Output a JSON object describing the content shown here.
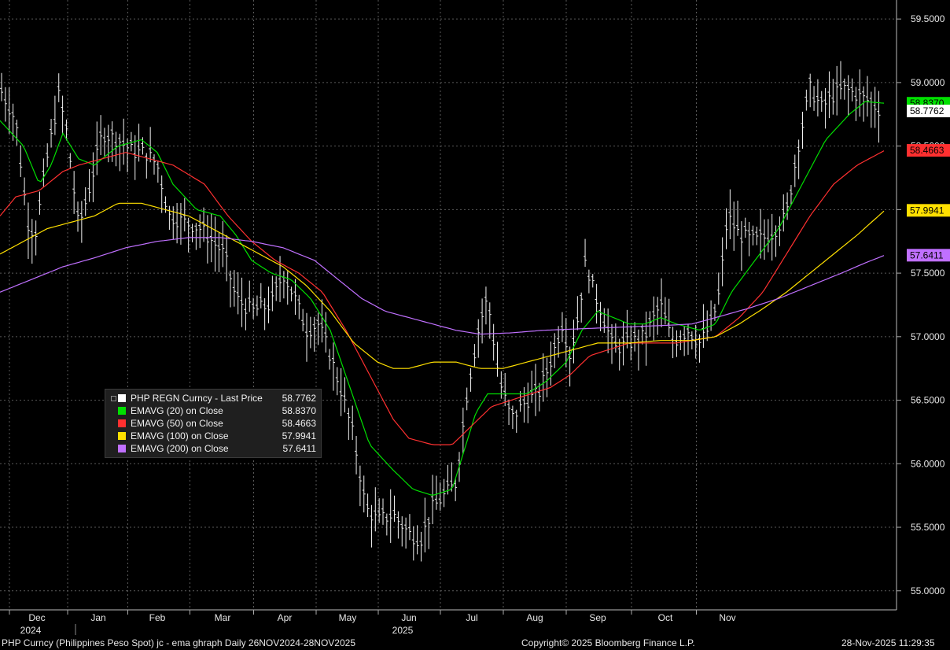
{
  "chart_data": {
    "type": "line",
    "ylim": [
      54.85,
      59.6
    ],
    "y_ticks": [
      "55.0000",
      "55.5000",
      "56.0000",
      "56.5000",
      "57.0000",
      "57.5000",
      "58.0000",
      "58.5000",
      "59.0000",
      "59.5000"
    ],
    "x_months": [
      {
        "label": "Dec",
        "t": 0.047,
        "year": "2024"
      },
      {
        "label": "Jan",
        "t": 0.125
      },
      {
        "label": "Feb",
        "t": 0.2
      },
      {
        "label": "Mar",
        "t": 0.283
      },
      {
        "label": "Apr",
        "t": 0.362
      },
      {
        "label": "May",
        "t": 0.442
      },
      {
        "label": "Jun",
        "t": 0.52,
        "year": "2025"
      },
      {
        "label": "Jul",
        "t": 0.6
      },
      {
        "label": "Aug",
        "t": 0.68
      },
      {
        "label": "Sep",
        "t": 0.76
      },
      {
        "label": "Oct",
        "t": 0.846
      },
      {
        "label": "Nov",
        "t": 0.925
      }
    ],
    "price_anchors": [
      [
        0.0,
        58.95
      ],
      [
        0.02,
        58.7
      ],
      [
        0.035,
        57.9
      ],
      [
        0.045,
        57.8
      ],
      [
        0.06,
        58.4
      ],
      [
        0.075,
        58.9
      ],
      [
        0.085,
        58.6
      ],
      [
        0.1,
        57.85
      ],
      [
        0.115,
        58.2
      ],
      [
        0.13,
        58.6
      ],
      [
        0.15,
        58.55
      ],
      [
        0.17,
        58.45
      ],
      [
        0.185,
        58.45
      ],
      [
        0.2,
        58.35
      ],
      [
        0.215,
        57.95
      ],
      [
        0.235,
        57.9
      ],
      [
        0.255,
        57.85
      ],
      [
        0.27,
        57.75
      ],
      [
        0.285,
        57.65
      ],
      [
        0.3,
        57.3
      ],
      [
        0.32,
        57.2
      ],
      [
        0.345,
        57.25
      ],
      [
        0.36,
        57.5
      ],
      [
        0.375,
        57.3
      ],
      [
        0.39,
        57.05
      ],
      [
        0.405,
        57.1
      ],
      [
        0.42,
        56.85
      ],
      [
        0.435,
        56.55
      ],
      [
        0.45,
        56.2
      ],
      [
        0.465,
        55.65
      ],
      [
        0.48,
        55.55
      ],
      [
        0.5,
        55.6
      ],
      [
        0.52,
        55.45
      ],
      [
        0.535,
        55.4
      ],
      [
        0.55,
        55.65
      ],
      [
        0.565,
        55.75
      ],
      [
        0.58,
        55.85
      ],
      [
        0.595,
        56.6
      ],
      [
        0.61,
        57.1
      ],
      [
        0.62,
        57.3
      ],
      [
        0.635,
        56.65
      ],
      [
        0.65,
        56.35
      ],
      [
        0.67,
        56.5
      ],
      [
        0.685,
        56.55
      ],
      [
        0.7,
        56.8
      ],
      [
        0.715,
        57.1
      ],
      [
        0.725,
        56.85
      ],
      [
        0.735,
        57.15
      ],
      [
        0.745,
        57.6
      ],
      [
        0.755,
        57.35
      ],
      [
        0.765,
        57.2
      ],
      [
        0.78,
        56.9
      ],
      [
        0.8,
        56.95
      ],
      [
        0.82,
        57.0
      ],
      [
        0.84,
        57.25
      ],
      [
        0.855,
        56.95
      ],
      [
        0.875,
        57.05
      ],
      [
        0.89,
        56.95
      ],
      [
        0.905,
        57.1
      ],
      [
        0.915,
        57.35
      ],
      [
        0.925,
        57.95
      ],
      [
        0.94,
        57.8
      ],
      [
        0.96,
        57.75
      ],
      [
        0.98,
        57.8
      ],
      [
        1.0,
        57.95
      ],
      [
        1.015,
        58.5
      ],
      [
        1.03,
        58.95
      ],
      [
        1.045,
        58.8
      ],
      [
        1.06,
        58.9
      ],
      [
        1.075,
        58.95
      ],
      [
        1.09,
        58.9
      ],
      [
        1.105,
        58.85
      ],
      [
        1.12,
        58.78
      ]
    ],
    "series": [
      {
        "name": "PHP REGN Curncy - Last Price",
        "value_text": "58.7762",
        "last": 58.7762,
        "color": "#ffffff"
      },
      {
        "name": "EMAVG (20)  on Close",
        "value_text": "58.8370",
        "last": 58.837,
        "color": "#00e000",
        "tag": "58.8370",
        "anchors": [
          [
            0.0,
            58.7
          ],
          [
            0.03,
            58.5
          ],
          [
            0.05,
            58.2
          ],
          [
            0.065,
            58.35
          ],
          [
            0.08,
            58.6
          ],
          [
            0.1,
            58.4
          ],
          [
            0.12,
            58.35
          ],
          [
            0.15,
            58.5
          ],
          [
            0.18,
            58.55
          ],
          [
            0.2,
            58.45
          ],
          [
            0.22,
            58.2
          ],
          [
            0.25,
            58.0
          ],
          [
            0.28,
            57.95
          ],
          [
            0.3,
            57.8
          ],
          [
            0.32,
            57.6
          ],
          [
            0.345,
            57.5
          ],
          [
            0.37,
            57.45
          ],
          [
            0.395,
            57.3
          ],
          [
            0.42,
            57.05
          ],
          [
            0.445,
            56.6
          ],
          [
            0.47,
            56.15
          ],
          [
            0.5,
            55.95
          ],
          [
            0.525,
            55.8
          ],
          [
            0.55,
            55.75
          ],
          [
            0.575,
            55.8
          ],
          [
            0.59,
            56.1
          ],
          [
            0.605,
            56.4
          ],
          [
            0.62,
            56.55
          ],
          [
            0.645,
            56.55
          ],
          [
            0.67,
            56.55
          ],
          [
            0.695,
            56.65
          ],
          [
            0.72,
            56.8
          ],
          [
            0.74,
            57.05
          ],
          [
            0.76,
            57.2
          ],
          [
            0.78,
            57.15
          ],
          [
            0.8,
            57.1
          ],
          [
            0.82,
            57.1
          ],
          [
            0.84,
            57.15
          ],
          [
            0.86,
            57.1
          ],
          [
            0.89,
            57.05
          ],
          [
            0.91,
            57.1
          ],
          [
            0.93,
            57.35
          ],
          [
            0.96,
            57.6
          ],
          [
            0.99,
            57.85
          ],
          [
            1.02,
            58.2
          ],
          [
            1.05,
            58.55
          ],
          [
            1.08,
            58.75
          ],
          [
            1.1,
            58.85
          ],
          [
            1.125,
            58.837
          ]
        ]
      },
      {
        "name": "EMAVG (50)  on Close",
        "value_text": "58.4663",
        "last": 58.4663,
        "color": "#ff3030",
        "tag": "58.4663",
        "anchors": [
          [
            0.0,
            57.95
          ],
          [
            0.02,
            58.1
          ],
          [
            0.05,
            58.15
          ],
          [
            0.08,
            58.3
          ],
          [
            0.1,
            58.35
          ],
          [
            0.13,
            58.4
          ],
          [
            0.16,
            58.45
          ],
          [
            0.19,
            58.4
          ],
          [
            0.22,
            58.35
          ],
          [
            0.26,
            58.2
          ],
          [
            0.29,
            57.95
          ],
          [
            0.32,
            57.75
          ],
          [
            0.35,
            57.6
          ],
          [
            0.38,
            57.5
          ],
          [
            0.41,
            57.35
          ],
          [
            0.44,
            57.05
          ],
          [
            0.47,
            56.7
          ],
          [
            0.5,
            56.35
          ],
          [
            0.52,
            56.2
          ],
          [
            0.55,
            56.15
          ],
          [
            0.575,
            56.15
          ],
          [
            0.6,
            56.3
          ],
          [
            0.625,
            56.45
          ],
          [
            0.65,
            56.5
          ],
          [
            0.675,
            56.55
          ],
          [
            0.7,
            56.6
          ],
          [
            0.725,
            56.7
          ],
          [
            0.75,
            56.85
          ],
          [
            0.775,
            56.9
          ],
          [
            0.8,
            56.95
          ],
          [
            0.83,
            56.95
          ],
          [
            0.86,
            56.95
          ],
          [
            0.89,
            56.98
          ],
          [
            0.91,
            57.0
          ],
          [
            0.94,
            57.15
          ],
          [
            0.97,
            57.35
          ],
          [
            1.0,
            57.65
          ],
          [
            1.03,
            57.95
          ],
          [
            1.06,
            58.2
          ],
          [
            1.09,
            58.35
          ],
          [
            1.125,
            58.466
          ]
        ]
      },
      {
        "name": "EMAVG (100)  on Close",
        "value_text": "57.9941",
        "last": 57.9941,
        "color": "#ffe000",
        "tag": "57.9941",
        "anchors": [
          [
            0.0,
            57.65
          ],
          [
            0.03,
            57.75
          ],
          [
            0.06,
            57.85
          ],
          [
            0.09,
            57.9
          ],
          [
            0.12,
            57.95
          ],
          [
            0.15,
            58.05
          ],
          [
            0.18,
            58.05
          ],
          [
            0.21,
            58.0
          ],
          [
            0.24,
            57.95
          ],
          [
            0.27,
            57.85
          ],
          [
            0.3,
            57.75
          ],
          [
            0.33,
            57.65
          ],
          [
            0.36,
            57.55
          ],
          [
            0.39,
            57.4
          ],
          [
            0.42,
            57.2
          ],
          [
            0.45,
            56.95
          ],
          [
            0.48,
            56.8
          ],
          [
            0.5,
            56.75
          ],
          [
            0.52,
            56.75
          ],
          [
            0.55,
            56.8
          ],
          [
            0.58,
            56.8
          ],
          [
            0.61,
            56.75
          ],
          [
            0.64,
            56.75
          ],
          [
            0.67,
            56.8
          ],
          [
            0.7,
            56.85
          ],
          [
            0.73,
            56.9
          ],
          [
            0.76,
            56.95
          ],
          [
            0.8,
            56.95
          ],
          [
            0.84,
            56.97
          ],
          [
            0.88,
            56.97
          ],
          [
            0.91,
            57.0
          ],
          [
            0.94,
            57.1
          ],
          [
            0.97,
            57.22
          ],
          [
            1.0,
            57.35
          ],
          [
            1.03,
            57.5
          ],
          [
            1.06,
            57.65
          ],
          [
            1.09,
            57.8
          ],
          [
            1.125,
            57.994
          ]
        ]
      },
      {
        "name": "EMAVG (200)  on Close",
        "value_text": "57.6411",
        "last": 57.6411,
        "color": "#c070ff",
        "tag": "57.6411",
        "anchors": [
          [
            0.0,
            57.35
          ],
          [
            0.04,
            57.45
          ],
          [
            0.08,
            57.55
          ],
          [
            0.12,
            57.62
          ],
          [
            0.16,
            57.7
          ],
          [
            0.2,
            57.75
          ],
          [
            0.24,
            57.78
          ],
          [
            0.28,
            57.78
          ],
          [
            0.32,
            57.75
          ],
          [
            0.36,
            57.7
          ],
          [
            0.4,
            57.6
          ],
          [
            0.43,
            57.45
          ],
          [
            0.46,
            57.3
          ],
          [
            0.49,
            57.2
          ],
          [
            0.52,
            57.15
          ],
          [
            0.55,
            57.1
          ],
          [
            0.58,
            57.05
          ],
          [
            0.61,
            57.02
          ],
          [
            0.65,
            57.03
          ],
          [
            0.69,
            57.05
          ],
          [
            0.73,
            57.06
          ],
          [
            0.77,
            57.07
          ],
          [
            0.81,
            57.08
          ],
          [
            0.85,
            57.09
          ],
          [
            0.88,
            57.1
          ],
          [
            0.91,
            57.15
          ],
          [
            0.95,
            57.22
          ],
          [
            0.99,
            57.3
          ],
          [
            1.03,
            57.4
          ],
          [
            1.07,
            57.5
          ],
          [
            1.1,
            57.58
          ],
          [
            1.125,
            57.641
          ]
        ]
      }
    ]
  },
  "footer": {
    "left": "PHP Curncy (Philippines Peso Spot) jc - ema ghraph Daily 26NOV2024-28NOV2025",
    "center": "Copyright© 2025 Bloomberg Finance L.P.",
    "right": "28-Nov-2025 11:29:35"
  },
  "price_tag": "58.7762"
}
